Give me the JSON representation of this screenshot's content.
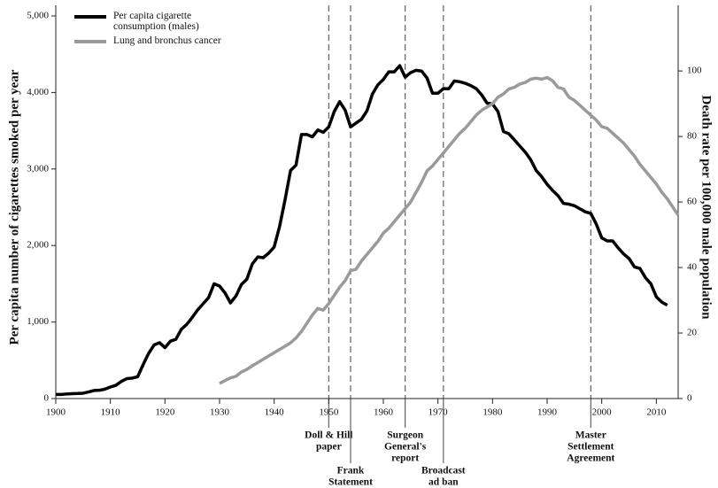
{
  "chart_data": {
    "type": "line",
    "xlabel": null,
    "ylabel": "Per capita number of cigarettes smoked per year",
    "y2label": "Death rate per 100,000 male population",
    "xlim": [
      1900,
      2014
    ],
    "xticks": [
      1900,
      1910,
      1920,
      1930,
      1940,
      1950,
      1960,
      1970,
      1980,
      1990,
      2000,
      2010
    ],
    "ylim": [
      0,
      5000
    ],
    "yticks": [
      0,
      {
        "value": 1000,
        "label": "1,000"
      },
      {
        "value": 2000,
        "label": "2,000"
      },
      {
        "value": 3000,
        "label": "3,000"
      },
      {
        "value": 4000,
        "label": "4,000"
      },
      {
        "value": 5000,
        "label": "5,000"
      }
    ],
    "y2lim": [
      0,
      116.8
    ],
    "y2ticks": [
      0,
      20,
      40,
      60,
      80,
      100
    ],
    "legend": "top-left",
    "series": [
      {
        "name": "Per capita cigarette consumption (males)",
        "color": "#000000",
        "axis": "y",
        "x": [
          1900,
          1901,
          1902,
          1903,
          1904,
          1905,
          1906,
          1907,
          1908,
          1909,
          1910,
          1911,
          1912,
          1913,
          1914,
          1915,
          1916,
          1917,
          1918,
          1919,
          1920,
          1921,
          1922,
          1923,
          1924,
          1925,
          1926,
          1927,
          1928,
          1929,
          1930,
          1931,
          1932,
          1933,
          1934,
          1935,
          1936,
          1937,
          1938,
          1939,
          1940,
          1941,
          1942,
          1943,
          1944,
          1945,
          1946,
          1947,
          1948,
          1949,
          1950,
          1951,
          1952,
          1953,
          1954,
          1955,
          1956,
          1957,
          1958,
          1959,
          1960,
          1961,
          1962,
          1963,
          1964,
          1965,
          1966,
          1967,
          1968,
          1969,
          1970,
          1971,
          1972,
          1973,
          1974,
          1975,
          1976,
          1977,
          1978,
          1979,
          1980,
          1981,
          1982,
          1983,
          1984,
          1985,
          1986,
          1987,
          1988,
          1989,
          1990,
          1991,
          1992,
          1993,
          1994,
          1995,
          1996,
          1997,
          1998,
          1999,
          2000,
          2001,
          2002,
          2003,
          2004,
          2005,
          2006,
          2007,
          2008,
          2009,
          2010,
          2011,
          2012
        ],
        "values": [
          54,
          53,
          60,
          64,
          66,
          70,
          86,
          105,
          108,
          123,
          151,
          173,
          223,
          260,
          267,
          285,
          443,
          590,
          700,
          730,
          665,
          750,
          775,
          905,
          970,
          1060,
          1160,
          1240,
          1320,
          1500,
          1470,
          1380,
          1250,
          1340,
          1490,
          1560,
          1760,
          1850,
          1840,
          1900,
          1980,
          2250,
          2600,
          2980,
          3050,
          3450,
          3450,
          3420,
          3510,
          3480,
          3550,
          3750,
          3880,
          3770,
          3550,
          3600,
          3650,
          3760,
          3980,
          4100,
          4170,
          4270,
          4270,
          4350,
          4200,
          4260,
          4290,
          4280,
          4190,
          3990,
          3990,
          4050,
          4050,
          4150,
          4140,
          4120,
          4090,
          4050,
          3970,
          3860,
          3850,
          3750,
          3490,
          3460,
          3380,
          3300,
          3220,
          3120,
          2980,
          2900,
          2800,
          2720,
          2650,
          2550,
          2540,
          2520,
          2480,
          2440,
          2420,
          2280,
          2100,
          2060,
          2060,
          1970,
          1890,
          1830,
          1720,
          1700,
          1580,
          1500,
          1330,
          1260,
          1220
        ]
      },
      {
        "name": "Lung and bronchus cancer",
        "color": "#9a9a9a",
        "axis": "y2",
        "x": [
          1930,
          1931,
          1932,
          1933,
          1934,
          1935,
          1936,
          1937,
          1938,
          1939,
          1940,
          1941,
          1942,
          1943,
          1944,
          1945,
          1946,
          1947,
          1948,
          1949,
          1950,
          1951,
          1952,
          1953,
          1954,
          1955,
          1956,
          1957,
          1958,
          1959,
          1960,
          1961,
          1962,
          1963,
          1964,
          1965,
          1966,
          1967,
          1968,
          1969,
          1970,
          1971,
          1972,
          1973,
          1974,
          1975,
          1976,
          1977,
          1978,
          1979,
          1980,
          1981,
          1982,
          1983,
          1984,
          1985,
          1986,
          1987,
          1988,
          1989,
          1990,
          1991,
          1992,
          1993,
          1994,
          1995,
          1996,
          1997,
          1998,
          1999,
          2000,
          2001,
          2002,
          2003,
          2004,
          2005,
          2006,
          2007,
          2008,
          2009,
          2010,
          2011,
          2012,
          2013,
          2014
        ],
        "values": [
          4.6,
          5.5,
          6.3,
          6.8,
          8.1,
          8.9,
          10,
          11,
          12,
          13,
          14,
          15,
          16,
          17,
          18.5,
          20.5,
          23,
          25.5,
          27.5,
          27,
          29,
          31.5,
          34,
          36,
          39,
          39.5,
          42,
          44,
          46,
          48,
          50.5,
          52,
          54,
          56,
          58,
          60,
          63,
          66,
          69.5,
          71,
          73,
          75,
          77,
          79,
          81,
          82.5,
          84.5,
          86.5,
          88,
          89,
          90,
          92,
          93,
          94.5,
          95,
          96,
          96.5,
          97.5,
          97.8,
          97.5,
          98,
          97,
          95,
          94.5,
          92,
          91,
          89.5,
          88,
          86.5,
          85,
          83,
          82.5,
          81,
          79.5,
          78,
          76,
          74,
          71.5,
          69.5,
          67.5,
          65.5,
          63,
          61,
          58.5,
          56
        ]
      }
    ],
    "annotations": [
      {
        "x": 1950,
        "lines": [
          "Doll & Hill",
          "paper"
        ]
      },
      {
        "x": 1954,
        "lines": [
          "Frank",
          "Statement"
        ]
      },
      {
        "x": 1964,
        "lines": [
          "Surgeon",
          "General's",
          "report"
        ]
      },
      {
        "x": 1971,
        "lines": [
          "Broadcast",
          "ad ban"
        ]
      },
      {
        "x": 1998,
        "lines": [
          "Master",
          "Settlement",
          "Agreement"
        ]
      }
    ]
  }
}
